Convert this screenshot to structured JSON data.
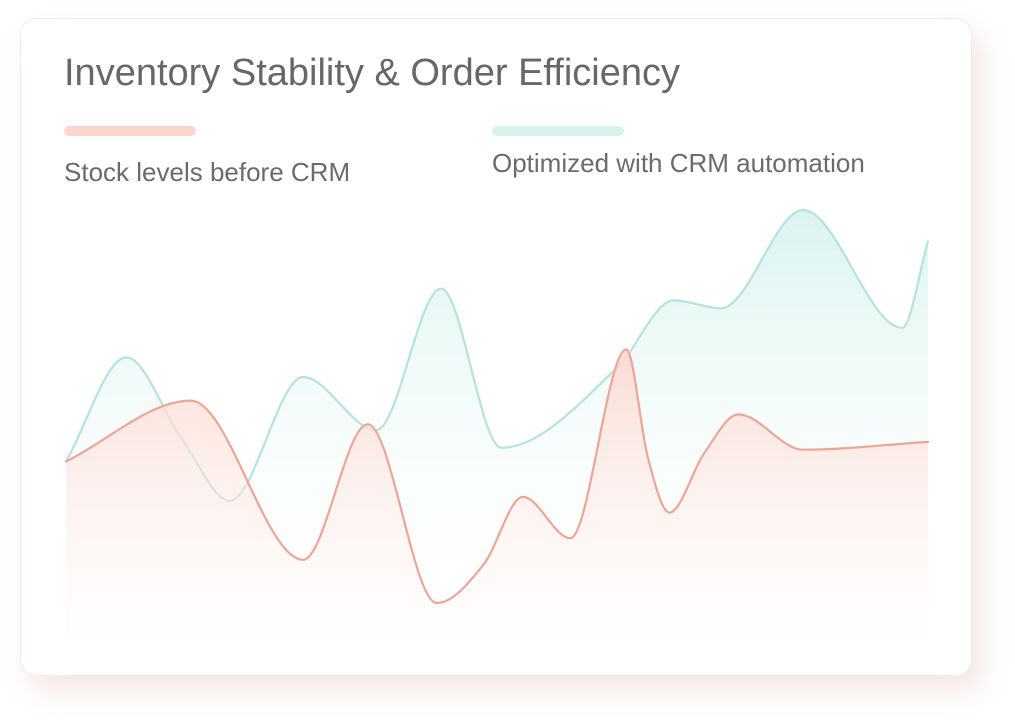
{
  "chart_data": {
    "type": "area",
    "title": "Inventory Stability & Order Efficiency",
    "xlabel": "",
    "ylabel": "",
    "grid": false,
    "axes_visible": false,
    "legend_placement": "top",
    "ylim": [
      0,
      100
    ],
    "series": [
      {
        "name": "Stock levels before CRM",
        "color": "#eba696",
        "fill": "#fde3dc",
        "x": [
          0,
          14.5,
          27.5,
          35,
          43,
          48.5,
          53,
          58.5,
          65,
          67.5,
          70,
          74,
          78,
          85.5,
          100
        ],
        "y": [
          36,
          51.5,
          11,
          45.5,
          0,
          10,
          27,
          16.5,
          64.5,
          37,
          23,
          38,
          48,
          39,
          41
        ]
      },
      {
        "name": "Optimized with CRM automation",
        "color": "#b5e3dc",
        "fill": "#e0f5f2",
        "x": [
          0,
          7,
          13.5,
          19,
          27.5,
          36,
          43.5,
          50.5,
          64,
          70.5,
          76,
          85.5,
          97,
          100
        ],
        "y": [
          36,
          62.5,
          41.5,
          26,
          57.5,
          44,
          80,
          39.5,
          60,
          77,
          75,
          100,
          70,
          92
        ]
      }
    ]
  }
}
